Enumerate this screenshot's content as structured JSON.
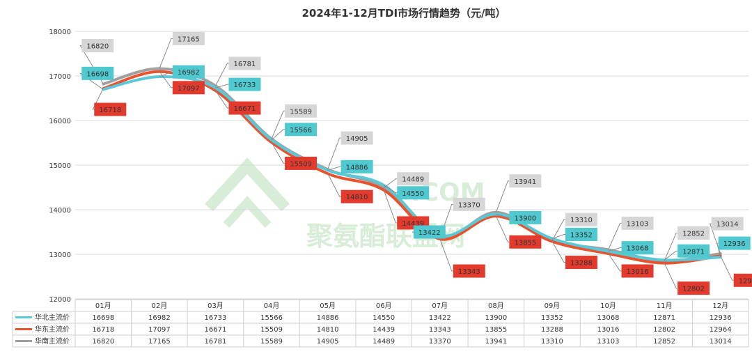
{
  "chart_data": {
    "type": "line",
    "title": "2024年1-12月TDI市场行情趋势（元/吨）",
    "categories": [
      "01月",
      "02月",
      "03月",
      "04月",
      "05月",
      "06月",
      "07月",
      "08月",
      "09月",
      "10月",
      "11月",
      "12月"
    ],
    "ylim": [
      12000,
      18000
    ],
    "yticks": [
      12000,
      13000,
      14000,
      15000,
      16000,
      17000,
      18000
    ],
    "grid": true,
    "legend_position": "data-table-left",
    "series": [
      {
        "name": "华北主流价",
        "color": "#5bc8d8",
        "label_bg": "#4fc9cf",
        "values": [
          16698,
          16982,
          16733,
          15566,
          14886,
          14550,
          13422,
          13900,
          13352,
          13068,
          12871,
          12936
        ]
      },
      {
        "name": "华东主流价",
        "color": "#e8522c",
        "label_bg": "#e23b2e",
        "values": [
          16718,
          17097,
          16671,
          15509,
          14810,
          14439,
          13343,
          13855,
          13288,
          13016,
          12802,
          12964
        ]
      },
      {
        "name": "华南主流价",
        "color": "#a0a0a0",
        "label_bg": "#d6d6d6",
        "values": [
          16820,
          17165,
          16781,
          15589,
          14905,
          14489,
          13370,
          13941,
          13310,
          13103,
          12852,
          13014
        ]
      }
    ]
  },
  "watermark": {
    "text_cn": "聚氨酯联盟网",
    "text_en": ".COM"
  }
}
